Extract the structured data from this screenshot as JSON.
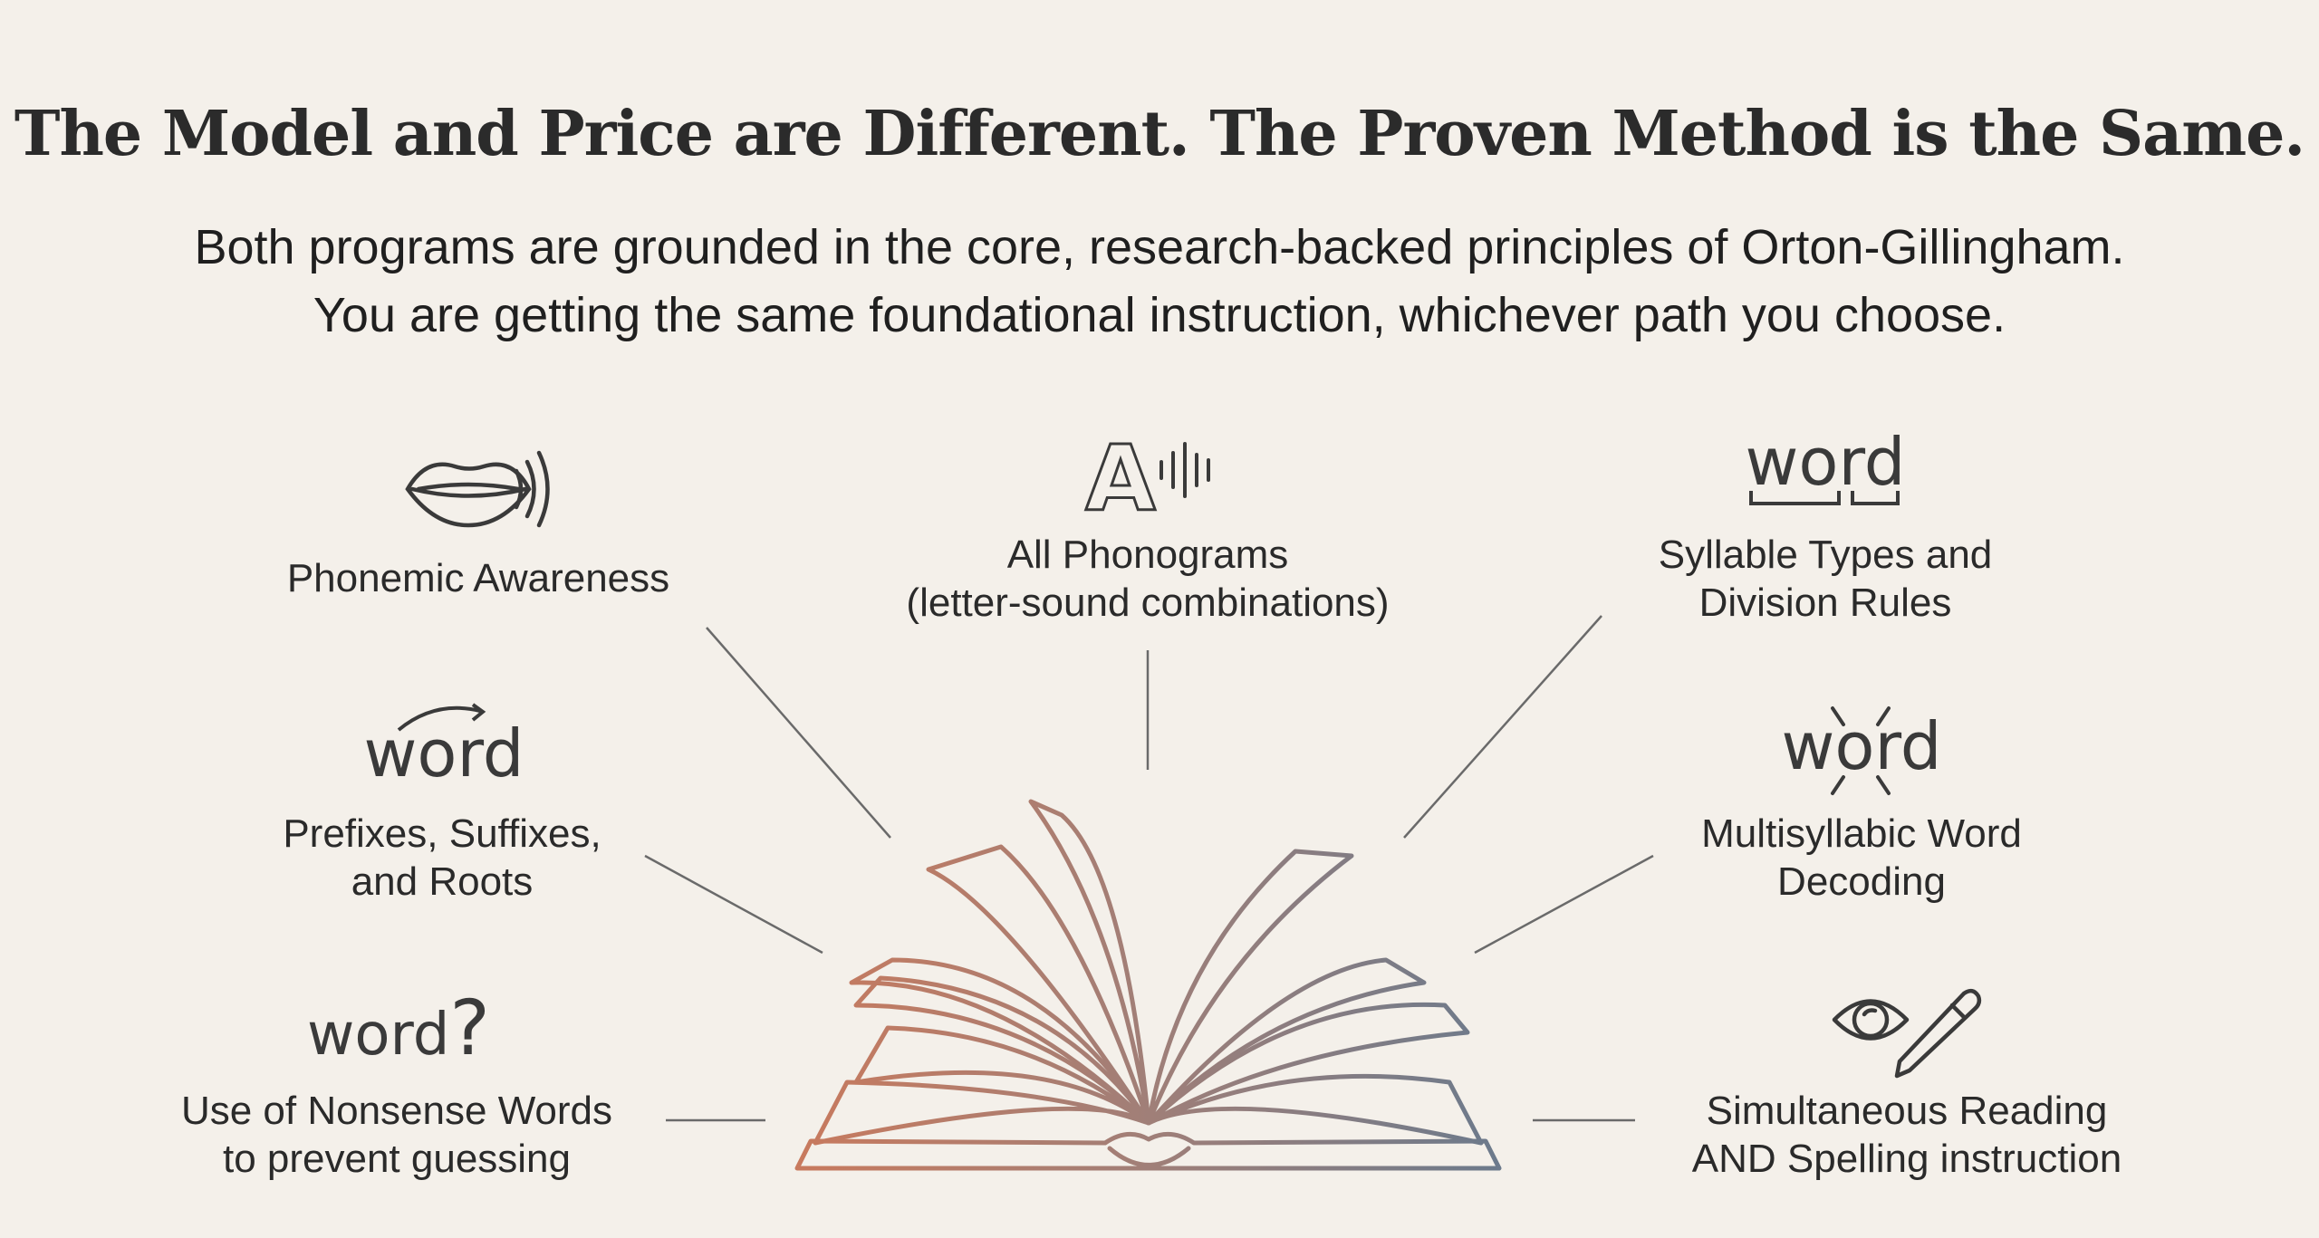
{
  "title": "The Model and Price are Different. The Proven Method is the Same.",
  "subtitle": [
    "Both programs are grounded in the core, research-backed principles of Orton-Gillingham.",
    "You are getting the same foundational instruction, whichever path you choose."
  ],
  "principles": {
    "phonemic": {
      "icon": "speaking-mouth-icon",
      "lines": [
        "Phonemic Awareness"
      ]
    },
    "phonograms": {
      "icon": "letter-a-sound-icon",
      "glyph": "A",
      "lines": [
        "All Phonograms",
        "(letter-sound combinations)"
      ]
    },
    "syllables": {
      "icon": "word-syllable-icon",
      "word": "word",
      "lines": [
        "Syllable Types and",
        "Division Rules"
      ]
    },
    "morphology": {
      "icon": "word-arc-icon",
      "word": "word",
      "lines": [
        "Prefixes, Suffixes,",
        "and Roots"
      ]
    },
    "multisyllabic": {
      "icon": "word-split-icon",
      "word": "word",
      "lines": [
        "Multisyllabic Word",
        "Decoding"
      ]
    },
    "nonsense": {
      "icon": "word-question-icon",
      "word": "word",
      "mark": "?",
      "lines": [
        "Use of Nonsense Words",
        "to prevent guessing"
      ]
    },
    "simultaneous": {
      "icon": "eye-pencil-icon",
      "lines": [
        "Simultaneous Reading",
        "AND Spelling instruction"
      ]
    }
  },
  "colors": {
    "background": "#f4f0ea",
    "book_left": "#c87a5e",
    "book_right": "#6b7a8c",
    "connector": "#6a6a6a"
  }
}
